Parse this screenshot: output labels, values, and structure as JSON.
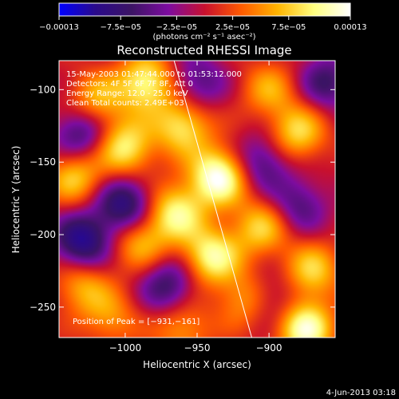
{
  "chart_data": {
    "type": "heatmap",
    "title": "Reconstructed RHESSI Image",
    "xlabel": "Heliocentric X (arcsec)",
    "ylabel": "Heliocentric Y (arcsec)",
    "xlim": [
      -1046,
      -854
    ],
    "ylim": [
      -271,
      -80
    ],
    "x_ticks": [
      -1000,
      -950,
      -900
    ],
    "x_tick_labels": [
      "−1000",
      "−950",
      "−900"
    ],
    "y_ticks": [
      -100,
      -150,
      -200,
      -250
    ],
    "y_tick_labels": [
      "−100",
      "−150",
      "−200",
      "−250"
    ],
    "colorbar": {
      "min": -0.00013,
      "max": 0.00013,
      "ticks": [
        -0.00013,
        -7.5e-05,
        -2.5e-05,
        2.5e-05,
        7.5e-05,
        0.00013
      ],
      "tick_labels": [
        "−0.00013",
        "−7.5e−05",
        "−2.5e−05",
        "2.5e−05",
        "7.5e−05",
        "0.00013"
      ],
      "unit_label": "(photons cm⁻² s⁻¹ asec⁻²)",
      "colors": [
        "#0000ff",
        "#2a0a8a",
        "#3c1464",
        "#7d0ca0",
        "#c8102e",
        "#ff5a00",
        "#ffb400",
        "#ffff80",
        "#ffffff"
      ]
    },
    "annotations": [
      "15-May-2003 01:47:44.000 to 01:53:12.000",
      "Detectors: 4F 5F 6F 7F 8F, Att 0",
      "Energy Range: 12.0 - 25.0 keV",
      "Clean     Total counts: 2.49E+03"
    ],
    "peak_label": "Position of Peak = [−931,−161]",
    "peak": {
      "x": -931,
      "y": -161
    },
    "limb_line": [
      [
        -966,
        -80
      ],
      [
        -912,
        -271
      ]
    ],
    "blobs": [
      {
        "x": -935,
        "y": -160,
        "amp": 1.0
      },
      {
        "x": -985,
        "y": -95,
        "amp": 0.8
      },
      {
        "x": -1020,
        "y": -108,
        "amp": 0.55
      },
      {
        "x": -960,
        "y": -125,
        "amp": 0.7
      },
      {
        "x": -1000,
        "y": -140,
        "amp": 0.75
      },
      {
        "x": -1035,
        "y": -160,
        "amp": 0.6
      },
      {
        "x": -965,
        "y": -185,
        "amp": 0.75
      },
      {
        "x": -990,
        "y": -205,
        "amp": 0.55
      },
      {
        "x": -940,
        "y": -215,
        "amp": 0.8
      },
      {
        "x": -905,
        "y": -195,
        "amp": 0.6
      },
      {
        "x": -880,
        "y": -130,
        "amp": 0.65
      },
      {
        "x": -870,
        "y": -225,
        "amp": 0.6
      },
      {
        "x": -915,
        "y": -245,
        "amp": 0.55
      },
      {
        "x": -875,
        "y": -265,
        "amp": 0.9
      },
      {
        "x": -1030,
        "y": -235,
        "amp": 0.5
      },
      {
        "x": -960,
        "y": -265,
        "amp": 0.45
      },
      {
        "x": -1010,
        "y": -258,
        "amp": 0.4
      },
      {
        "x": -900,
        "y": -100,
        "amp": 0.45
      },
      {
        "x": -1000,
        "y": -180,
        "amp": -0.75
      },
      {
        "x": -1030,
        "y": -205,
        "amp": -0.8
      },
      {
        "x": -1030,
        "y": -130,
        "amp": -0.6
      },
      {
        "x": -970,
        "y": -235,
        "amp": -0.55
      },
      {
        "x": -950,
        "y": -95,
        "amp": -0.45
      },
      {
        "x": -905,
        "y": -150,
        "amp": -0.5
      },
      {
        "x": -880,
        "y": -180,
        "amp": -0.45
      },
      {
        "x": -900,
        "y": -245,
        "amp": -0.4
      },
      {
        "x": -860,
        "y": -95,
        "amp": -0.5
      }
    ]
  },
  "footer": {
    "date_stamp": "4-Jun-2013 03:18"
  }
}
